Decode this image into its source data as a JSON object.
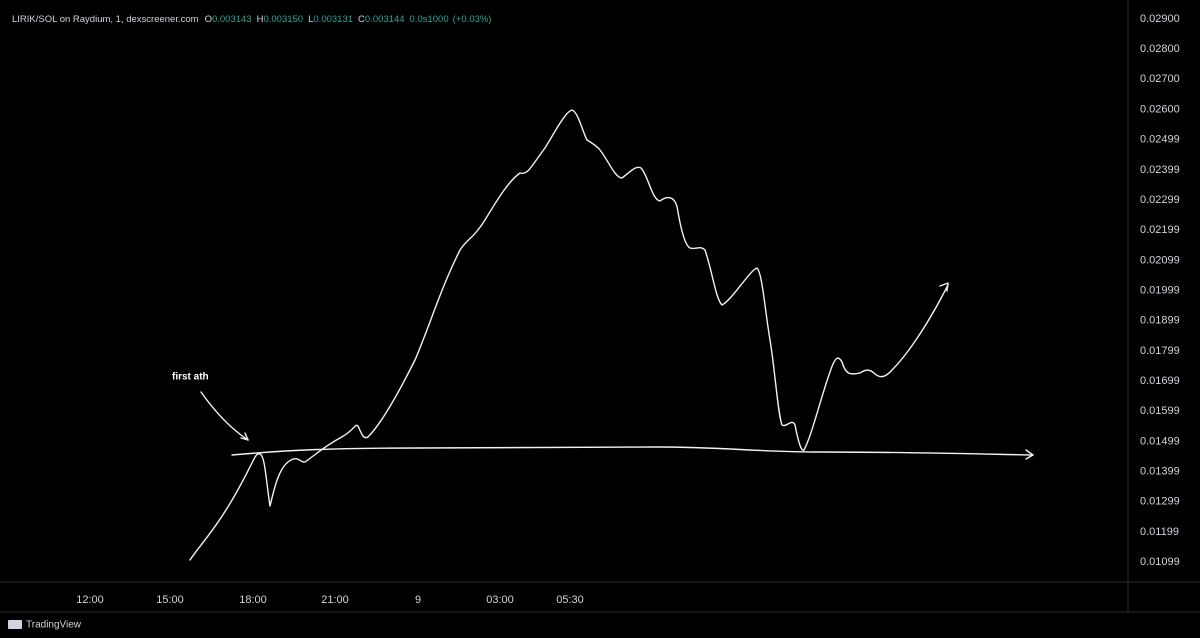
{
  "header": {
    "symbol": "LIRIK/SOL on Raydium, 1, dexscreener.com",
    "ohlc": [
      {
        "label": "O",
        "value": "0.003143"
      },
      {
        "label": "H",
        "value": "0.003150"
      },
      {
        "label": "L",
        "value": "0.003131"
      },
      {
        "label": "C",
        "value": "0.003144"
      }
    ],
    "volume": "0.0s1000",
    "change": "(+0.03%)"
  },
  "price_axis": {
    "ticks": [
      "0.02900",
      "0.02800",
      "0.02700",
      "0.02600",
      "0.02499",
      "0.02399",
      "0.02299",
      "0.02199",
      "0.02099",
      "0.01999",
      "0.01899",
      "0.01799",
      "0.01699",
      "0.01599",
      "0.01499",
      "0.01399",
      "0.01299",
      "0.01199",
      "0.01099"
    ]
  },
  "time_axis": {
    "labels": [
      "12:00",
      "15:00",
      "18:00",
      "21:00",
      "9",
      "03:00",
      "05:30"
    ]
  },
  "annotation": "first ath",
  "footer": {
    "brand": "TradingView"
  }
}
